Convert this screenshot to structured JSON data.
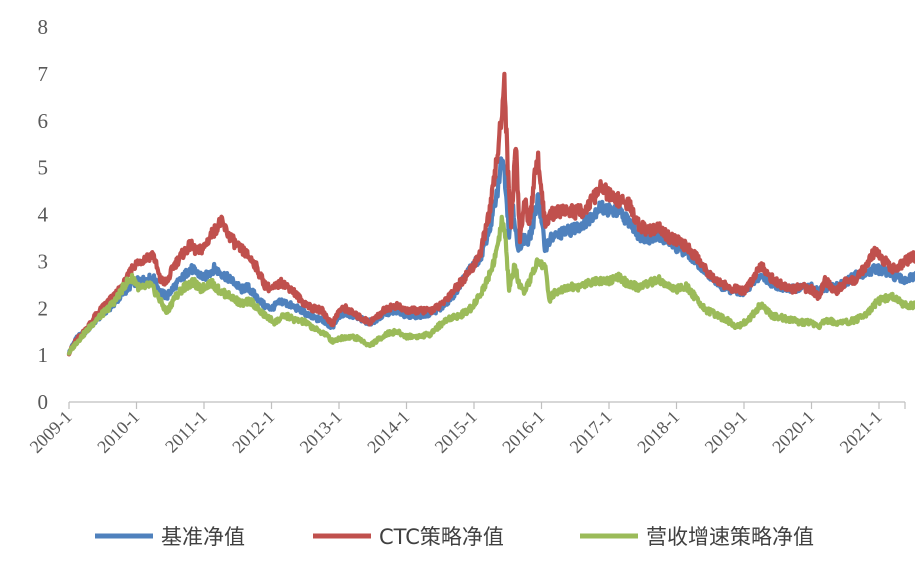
{
  "chart_data": {
    "type": "line",
    "title": "",
    "xlabel": "",
    "ylabel": "",
    "ylim": [
      0,
      8
    ],
    "y_ticks": [
      "0",
      "1",
      "2",
      "3",
      "4",
      "5",
      "6",
      "7",
      "8"
    ],
    "x_tick_labels": [
      "2009-1",
      "2010-1",
      "2011-1",
      "2012-1",
      "2013-1",
      "2014-1",
      "2015-1",
      "2016-1",
      "2017-1",
      "2018-1",
      "2019-1",
      "2020-1",
      "2021-1"
    ],
    "x_start": 2009.0,
    "x_end": 2021.7,
    "grid": false,
    "legend": "bottom",
    "series": [
      {
        "name": "基准净值",
        "color": "#4F81BD",
        "points": [
          [
            2009.0,
            1.05
          ],
          [
            2009.1,
            1.35
          ],
          [
            2009.25,
            1.5
          ],
          [
            2009.4,
            1.75
          ],
          [
            2009.55,
            1.95
          ],
          [
            2009.7,
            2.15
          ],
          [
            2009.85,
            2.4
          ],
          [
            2009.95,
            2.55
          ],
          [
            2010.1,
            2.6
          ],
          [
            2010.25,
            2.65
          ],
          [
            2010.35,
            2.35
          ],
          [
            2010.45,
            2.25
          ],
          [
            2010.55,
            2.45
          ],
          [
            2010.65,
            2.6
          ],
          [
            2010.8,
            2.85
          ],
          [
            2010.9,
            2.75
          ],
          [
            2011.0,
            2.65
          ],
          [
            2011.15,
            2.85
          ],
          [
            2011.3,
            2.7
          ],
          [
            2011.45,
            2.55
          ],
          [
            2011.55,
            2.4
          ],
          [
            2011.65,
            2.45
          ],
          [
            2011.8,
            2.2
          ],
          [
            2011.9,
            2.05
          ],
          [
            2012.0,
            2.0
          ],
          [
            2012.15,
            2.15
          ],
          [
            2012.3,
            2.05
          ],
          [
            2012.45,
            1.95
          ],
          [
            2012.6,
            1.8
          ],
          [
            2012.75,
            1.75
          ],
          [
            2012.9,
            1.6
          ],
          [
            2013.0,
            1.85
          ],
          [
            2013.1,
            1.9
          ],
          [
            2013.25,
            1.8
          ],
          [
            2013.45,
            1.7
          ],
          [
            2013.55,
            1.75
          ],
          [
            2013.7,
            1.9
          ],
          [
            2013.85,
            1.95
          ],
          [
            2014.0,
            1.85
          ],
          [
            2014.2,
            1.85
          ],
          [
            2014.35,
            1.9
          ],
          [
            2014.5,
            2.0
          ],
          [
            2014.65,
            2.2
          ],
          [
            2014.8,
            2.5
          ],
          [
            2014.95,
            2.85
          ],
          [
            2015.1,
            3.1
          ],
          [
            2015.25,
            3.8
          ],
          [
            2015.35,
            4.5
          ],
          [
            2015.42,
            5.3
          ],
          [
            2015.47,
            4.6
          ],
          [
            2015.52,
            3.6
          ],
          [
            2015.58,
            4.2
          ],
          [
            2015.65,
            3.2
          ],
          [
            2015.72,
            3.5
          ],
          [
            2015.8,
            3.4
          ],
          [
            2015.88,
            3.8
          ],
          [
            2015.95,
            4.4
          ],
          [
            2016.05,
            3.3
          ],
          [
            2016.15,
            3.5
          ],
          [
            2016.3,
            3.6
          ],
          [
            2016.5,
            3.7
          ],
          [
            2016.7,
            3.9
          ],
          [
            2016.85,
            4.15
          ],
          [
            2017.0,
            4.1
          ],
          [
            2017.15,
            4.05
          ],
          [
            2017.3,
            3.85
          ],
          [
            2017.45,
            3.55
          ],
          [
            2017.6,
            3.5
          ],
          [
            2017.75,
            3.55
          ],
          [
            2017.9,
            3.4
          ],
          [
            2018.0,
            3.3
          ],
          [
            2018.15,
            3.2
          ],
          [
            2018.3,
            3.0
          ],
          [
            2018.45,
            2.75
          ],
          [
            2018.6,
            2.55
          ],
          [
            2018.75,
            2.4
          ],
          [
            2018.9,
            2.35
          ],
          [
            2019.0,
            2.35
          ],
          [
            2019.1,
            2.5
          ],
          [
            2019.25,
            2.7
          ],
          [
            2019.4,
            2.55
          ],
          [
            2019.55,
            2.45
          ],
          [
            2019.7,
            2.4
          ],
          [
            2019.85,
            2.45
          ],
          [
            2020.0,
            2.45
          ],
          [
            2020.1,
            2.35
          ],
          [
            2020.2,
            2.45
          ],
          [
            2020.35,
            2.45
          ],
          [
            2020.5,
            2.55
          ],
          [
            2020.65,
            2.7
          ],
          [
            2020.8,
            2.75
          ],
          [
            2020.95,
            2.85
          ],
          [
            2021.05,
            2.8
          ],
          [
            2021.2,
            2.7
          ],
          [
            2021.35,
            2.6
          ],
          [
            2021.5,
            2.65
          ],
          [
            2021.6,
            2.7
          ],
          [
            2021.7,
            2.75
          ]
        ]
      },
      {
        "name": "CTC策略净值",
        "color": "#C0504D",
        "points": [
          [
            2009.0,
            1.05
          ],
          [
            2009.1,
            1.3
          ],
          [
            2009.25,
            1.55
          ],
          [
            2009.4,
            1.85
          ],
          [
            2009.55,
            2.1
          ],
          [
            2009.7,
            2.3
          ],
          [
            2009.85,
            2.6
          ],
          [
            2009.95,
            2.9
          ],
          [
            2010.1,
            3.05
          ],
          [
            2010.25,
            3.15
          ],
          [
            2010.35,
            2.6
          ],
          [
            2010.45,
            2.55
          ],
          [
            2010.55,
            2.9
          ],
          [
            2010.65,
            3.1
          ],
          [
            2010.8,
            3.35
          ],
          [
            2010.9,
            3.2
          ],
          [
            2011.0,
            3.3
          ],
          [
            2011.1,
            3.55
          ],
          [
            2011.25,
            3.85
          ],
          [
            2011.35,
            3.6
          ],
          [
            2011.5,
            3.3
          ],
          [
            2011.6,
            3.2
          ],
          [
            2011.75,
            2.95
          ],
          [
            2011.9,
            2.5
          ],
          [
            2012.0,
            2.4
          ],
          [
            2012.15,
            2.55
          ],
          [
            2012.3,
            2.4
          ],
          [
            2012.45,
            2.15
          ],
          [
            2012.6,
            2.0
          ],
          [
            2012.75,
            1.95
          ],
          [
            2012.9,
            1.65
          ],
          [
            2013.0,
            1.95
          ],
          [
            2013.1,
            2.0
          ],
          [
            2013.25,
            1.85
          ],
          [
            2013.45,
            1.7
          ],
          [
            2013.55,
            1.8
          ],
          [
            2013.7,
            2.0
          ],
          [
            2013.85,
            2.05
          ],
          [
            2014.0,
            1.95
          ],
          [
            2014.2,
            1.95
          ],
          [
            2014.35,
            1.95
          ],
          [
            2014.5,
            2.05
          ],
          [
            2014.65,
            2.3
          ],
          [
            2014.8,
            2.55
          ],
          [
            2014.95,
            2.8
          ],
          [
            2015.1,
            3.2
          ],
          [
            2015.25,
            4.2
          ],
          [
            2015.35,
            5.3
          ],
          [
            2015.4,
            6.0
          ],
          [
            2015.45,
            6.9
          ],
          [
            2015.5,
            5.0
          ],
          [
            2015.55,
            3.8
          ],
          [
            2015.62,
            5.5
          ],
          [
            2015.68,
            3.5
          ],
          [
            2015.75,
            4.3
          ],
          [
            2015.82,
            3.8
          ],
          [
            2015.9,
            4.8
          ],
          [
            2015.95,
            5.2
          ],
          [
            2016.05,
            3.8
          ],
          [
            2016.15,
            4.0
          ],
          [
            2016.3,
            4.1
          ],
          [
            2016.5,
            4.05
          ],
          [
            2016.65,
            4.1
          ],
          [
            2016.8,
            4.4
          ],
          [
            2016.9,
            4.6
          ],
          [
            2017.0,
            4.4
          ],
          [
            2017.15,
            4.3
          ],
          [
            2017.3,
            4.2
          ],
          [
            2017.45,
            3.75
          ],
          [
            2017.6,
            3.65
          ],
          [
            2017.75,
            3.7
          ],
          [
            2017.9,
            3.5
          ],
          [
            2018.0,
            3.45
          ],
          [
            2018.15,
            3.3
          ],
          [
            2018.3,
            3.1
          ],
          [
            2018.45,
            2.8
          ],
          [
            2018.6,
            2.6
          ],
          [
            2018.75,
            2.45
          ],
          [
            2018.9,
            2.4
          ],
          [
            2019.0,
            2.35
          ],
          [
            2019.1,
            2.55
          ],
          [
            2019.25,
            2.95
          ],
          [
            2019.4,
            2.65
          ],
          [
            2019.55,
            2.5
          ],
          [
            2019.7,
            2.4
          ],
          [
            2019.85,
            2.45
          ],
          [
            2020.0,
            2.4
          ],
          [
            2020.1,
            2.25
          ],
          [
            2020.2,
            2.6
          ],
          [
            2020.35,
            2.35
          ],
          [
            2020.5,
            2.55
          ],
          [
            2020.65,
            2.6
          ],
          [
            2020.8,
            2.9
          ],
          [
            2020.95,
            3.25
          ],
          [
            2021.05,
            3.05
          ],
          [
            2021.2,
            2.85
          ],
          [
            2021.35,
            2.95
          ],
          [
            2021.5,
            3.1
          ],
          [
            2021.6,
            3.05
          ],
          [
            2021.7,
            2.95
          ]
        ]
      },
      {
        "name": "营收增速策略净值",
        "color": "#9BBB59",
        "points": [
          [
            2009.0,
            1.05
          ],
          [
            2009.1,
            1.25
          ],
          [
            2009.25,
            1.5
          ],
          [
            2009.4,
            1.75
          ],
          [
            2009.55,
            1.95
          ],
          [
            2009.7,
            2.2
          ],
          [
            2009.85,
            2.55
          ],
          [
            2009.95,
            2.65
          ],
          [
            2010.05,
            2.4
          ],
          [
            2010.2,
            2.5
          ],
          [
            2010.3,
            2.3
          ],
          [
            2010.45,
            1.9
          ],
          [
            2010.55,
            2.2
          ],
          [
            2010.7,
            2.45
          ],
          [
            2010.85,
            2.55
          ],
          [
            2010.95,
            2.4
          ],
          [
            2011.1,
            2.55
          ],
          [
            2011.25,
            2.35
          ],
          [
            2011.4,
            2.25
          ],
          [
            2011.55,
            2.1
          ],
          [
            2011.7,
            2.15
          ],
          [
            2011.85,
            1.9
          ],
          [
            2011.95,
            1.8
          ],
          [
            2012.05,
            1.7
          ],
          [
            2012.2,
            1.85
          ],
          [
            2012.35,
            1.75
          ],
          [
            2012.5,
            1.7
          ],
          [
            2012.65,
            1.55
          ],
          [
            2012.8,
            1.45
          ],
          [
            2012.9,
            1.3
          ],
          [
            2013.0,
            1.35
          ],
          [
            2013.15,
            1.4
          ],
          [
            2013.3,
            1.35
          ],
          [
            2013.45,
            1.2
          ],
          [
            2013.55,
            1.3
          ],
          [
            2013.7,
            1.45
          ],
          [
            2013.85,
            1.5
          ],
          [
            2014.0,
            1.4
          ],
          [
            2014.2,
            1.4
          ],
          [
            2014.35,
            1.45
          ],
          [
            2014.5,
            1.65
          ],
          [
            2014.65,
            1.8
          ],
          [
            2014.8,
            1.85
          ],
          [
            2014.95,
            2.0
          ],
          [
            2015.1,
            2.3
          ],
          [
            2015.25,
            2.8
          ],
          [
            2015.35,
            3.3
          ],
          [
            2015.42,
            3.9
          ],
          [
            2015.47,
            3.4
          ],
          [
            2015.52,
            2.4
          ],
          [
            2015.6,
            2.9
          ],
          [
            2015.68,
            2.45
          ],
          [
            2015.75,
            2.3
          ],
          [
            2015.85,
            2.7
          ],
          [
            2015.95,
            3.0
          ],
          [
            2016.05,
            2.9
          ],
          [
            2016.12,
            2.2
          ],
          [
            2016.25,
            2.4
          ],
          [
            2016.4,
            2.45
          ],
          [
            2016.55,
            2.45
          ],
          [
            2016.7,
            2.55
          ],
          [
            2016.85,
            2.6
          ],
          [
            2017.0,
            2.6
          ],
          [
            2017.15,
            2.65
          ],
          [
            2017.3,
            2.5
          ],
          [
            2017.45,
            2.45
          ],
          [
            2017.6,
            2.55
          ],
          [
            2017.75,
            2.6
          ],
          [
            2017.9,
            2.45
          ],
          [
            2018.0,
            2.4
          ],
          [
            2018.15,
            2.45
          ],
          [
            2018.3,
            2.2
          ],
          [
            2018.45,
            1.95
          ],
          [
            2018.6,
            1.85
          ],
          [
            2018.75,
            1.75
          ],
          [
            2018.9,
            1.6
          ],
          [
            2019.0,
            1.7
          ],
          [
            2019.1,
            1.8
          ],
          [
            2019.25,
            2.1
          ],
          [
            2019.4,
            1.85
          ],
          [
            2019.55,
            1.8
          ],
          [
            2019.7,
            1.75
          ],
          [
            2019.85,
            1.7
          ],
          [
            2020.0,
            1.7
          ],
          [
            2020.1,
            1.6
          ],
          [
            2020.2,
            1.75
          ],
          [
            2020.35,
            1.7
          ],
          [
            2020.5,
            1.7
          ],
          [
            2020.65,
            1.75
          ],
          [
            2020.8,
            1.85
          ],
          [
            2020.95,
            2.1
          ],
          [
            2021.05,
            2.2
          ],
          [
            2021.2,
            2.25
          ],
          [
            2021.35,
            2.1
          ],
          [
            2021.5,
            2.05
          ],
          [
            2021.6,
            2.1
          ],
          [
            2021.7,
            2.15
          ]
        ]
      }
    ]
  }
}
